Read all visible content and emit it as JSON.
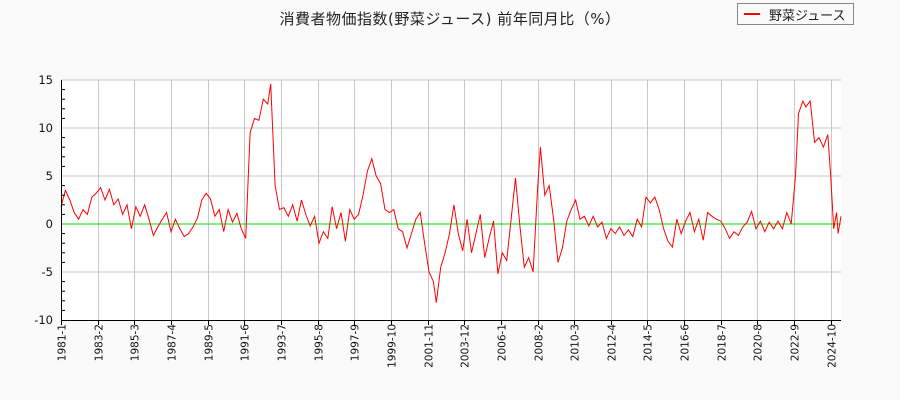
{
  "chart_data": {
    "type": "line",
    "title": "消費者物価指数(野菜ジュース) 前年同月比（%）",
    "xlabel": "",
    "ylabel": "",
    "ylim": [
      -10,
      15
    ],
    "yticks": [
      15,
      10,
      5,
      0,
      -5,
      -10
    ],
    "xticks": [
      "1981-1",
      "1983-2",
      "1985-3",
      "1987-4",
      "1989-5",
      "1991-6",
      "1993-7",
      "1995-8",
      "1997-9",
      "1999-10",
      "2001-11",
      "2003-12",
      "2006-1",
      "2008-2",
      "2010-3",
      "2012-4",
      "2014-5",
      "2016-6",
      "2018-7",
      "2020-8",
      "2022-9",
      "2024-10"
    ],
    "grid": true,
    "legend_position": "top-right",
    "reference_line": {
      "y": 0,
      "color": "#00dd00"
    },
    "series": [
      {
        "name": "野菜ジュース",
        "color": "#ff0000",
        "points": [
          [
            "1981-1",
            1.8
          ],
          [
            "1981-4",
            3.5
          ],
          [
            "1981-7",
            2.5
          ],
          [
            "1981-10",
            1.2
          ],
          [
            "1982-1",
            0.5
          ],
          [
            "1982-4",
            1.5
          ],
          [
            "1982-7",
            1.0
          ],
          [
            "1982-10",
            2.8
          ],
          [
            "1983-1",
            3.2
          ],
          [
            "1983-4",
            3.8
          ],
          [
            "1983-7",
            2.5
          ],
          [
            "1983-10",
            3.6
          ],
          [
            "1984-1",
            2.0
          ],
          [
            "1984-4",
            2.6
          ],
          [
            "1984-7",
            1.0
          ],
          [
            "1984-10",
            2.0
          ],
          [
            "1985-1",
            -0.5
          ],
          [
            "1985-4",
            1.8
          ],
          [
            "1985-7",
            0.8
          ],
          [
            "1985-10",
            2.0
          ],
          [
            "1986-1",
            0.5
          ],
          [
            "1986-4",
            -1.2
          ],
          [
            "1986-7",
            -0.3
          ],
          [
            "1986-10",
            0.5
          ],
          [
            "1987-1",
            1.2
          ],
          [
            "1987-4",
            -0.8
          ],
          [
            "1987-7",
            0.5
          ],
          [
            "1987-10",
            -0.5
          ],
          [
            "1988-1",
            -1.3
          ],
          [
            "1988-4",
            -1.0
          ],
          [
            "1988-7",
            -0.3
          ],
          [
            "1988-10",
            0.6
          ],
          [
            "1989-1",
            2.5
          ],
          [
            "1989-4",
            3.2
          ],
          [
            "1989-7",
            2.6
          ],
          [
            "1989-10",
            0.8
          ],
          [
            "1990-1",
            1.5
          ],
          [
            "1990-4",
            -0.8
          ],
          [
            "1990-7",
            1.5
          ],
          [
            "1990-10",
            0.2
          ],
          [
            "1991-1",
            1.1
          ],
          [
            "1991-4",
            -0.5
          ],
          [
            "1991-7",
            -1.5
          ],
          [
            "1991-10",
            9.5
          ],
          [
            "1992-1",
            11.0
          ],
          [
            "1992-4",
            10.8
          ],
          [
            "1992-7",
            13.0
          ],
          [
            "1992-10",
            12.5
          ],
          [
            "1992-12",
            14.6
          ],
          [
            "1993-3",
            4.0
          ],
          [
            "1993-6",
            1.5
          ],
          [
            "1993-9",
            1.7
          ],
          [
            "1993-12",
            0.8
          ],
          [
            "1994-3",
            2.0
          ],
          [
            "1994-6",
            0.3
          ],
          [
            "1994-9",
            2.5
          ],
          [
            "1994-12",
            1.0
          ],
          [
            "1995-3",
            -0.2
          ],
          [
            "1995-6",
            0.8
          ],
          [
            "1995-9",
            -2.0
          ],
          [
            "1995-12",
            -0.8
          ],
          [
            "1996-3",
            -1.5
          ],
          [
            "1996-6",
            1.8
          ],
          [
            "1996-9",
            -0.5
          ],
          [
            "1996-12",
            1.2
          ],
          [
            "1997-3",
            -1.8
          ],
          [
            "1997-6",
            1.5
          ],
          [
            "1997-9",
            0.5
          ],
          [
            "1997-12",
            1.0
          ],
          [
            "1998-3",
            3.0
          ],
          [
            "1998-6",
            5.5
          ],
          [
            "1998-9",
            6.8
          ],
          [
            "1998-12",
            5.0
          ],
          [
            "1999-3",
            4.2
          ],
          [
            "1999-6",
            1.5
          ],
          [
            "1999-9",
            1.2
          ],
          [
            "1999-12",
            1.5
          ],
          [
            "2000-3",
            -0.5
          ],
          [
            "2000-6",
            -0.8
          ],
          [
            "2000-9",
            -2.5
          ],
          [
            "2000-12",
            -1.0
          ],
          [
            "2001-3",
            0.5
          ],
          [
            "2001-6",
            1.2
          ],
          [
            "2001-9",
            -2.0
          ],
          [
            "2001-12",
            -5.0
          ],
          [
            "2002-3",
            -6.0
          ],
          [
            "2002-5",
            -8.2
          ],
          [
            "2002-8",
            -4.5
          ],
          [
            "2002-11",
            -3.0
          ],
          [
            "2003-2",
            -1.0
          ],
          [
            "2003-5",
            2.0
          ],
          [
            "2003-8",
            -1.0
          ],
          [
            "2003-11",
            -2.8
          ],
          [
            "2004-2",
            0.5
          ],
          [
            "2004-5",
            -3.0
          ],
          [
            "2004-8",
            -1.0
          ],
          [
            "2004-11",
            1.0
          ],
          [
            "2005-2",
            -3.5
          ],
          [
            "2005-5",
            -1.5
          ],
          [
            "2005-8",
            0.3
          ],
          [
            "2005-11",
            -5.2
          ],
          [
            "2006-2",
            -3.0
          ],
          [
            "2006-5",
            -3.8
          ],
          [
            "2006-8",
            0.5
          ],
          [
            "2006-11",
            4.8
          ],
          [
            "2007-2",
            -0.2
          ],
          [
            "2007-5",
            -4.5
          ],
          [
            "2007-8",
            -3.5
          ],
          [
            "2007-11",
            -5.0
          ],
          [
            "2008-2",
            3.5
          ],
          [
            "2008-4",
            8.0
          ],
          [
            "2008-7",
            3.0
          ],
          [
            "2008-10",
            4.0
          ],
          [
            "2009-1",
            0.5
          ],
          [
            "2009-4",
            -4.0
          ],
          [
            "2009-7",
            -2.5
          ],
          [
            "2009-10",
            0.3
          ],
          [
            "2010-1",
            1.5
          ],
          [
            "2010-4",
            2.5
          ],
          [
            "2010-7",
            0.5
          ],
          [
            "2010-10",
            0.8
          ],
          [
            "2011-1",
            -0.2
          ],
          [
            "2011-4",
            0.8
          ],
          [
            "2011-7",
            -0.3
          ],
          [
            "2011-10",
            0.2
          ],
          [
            "2012-1",
            -1.5
          ],
          [
            "2012-4",
            -0.5
          ],
          [
            "2012-7",
            -1.0
          ],
          [
            "2012-10",
            -0.3
          ],
          [
            "2013-1",
            -1.2
          ],
          [
            "2013-4",
            -0.6
          ],
          [
            "2013-7",
            -1.3
          ],
          [
            "2013-10",
            0.5
          ],
          [
            "2014-1",
            -0.3
          ],
          [
            "2014-4",
            2.8
          ],
          [
            "2014-7",
            2.2
          ],
          [
            "2014-10",
            2.8
          ],
          [
            "2015-1",
            1.5
          ],
          [
            "2015-4",
            -0.5
          ],
          [
            "2015-7",
            -1.8
          ],
          [
            "2015-10",
            -2.4
          ],
          [
            "2016-1",
            0.5
          ],
          [
            "2016-4",
            -1.0
          ],
          [
            "2016-7",
            0.3
          ],
          [
            "2016-10",
            1.2
          ],
          [
            "2017-1",
            -0.8
          ],
          [
            "2017-4",
            0.5
          ],
          [
            "2017-7",
            -1.7
          ],
          [
            "2017-10",
            1.2
          ],
          [
            "2018-1",
            0.8
          ],
          [
            "2018-4",
            0.5
          ],
          [
            "2018-7",
            0.3
          ],
          [
            "2018-10",
            -0.5
          ],
          [
            "2019-1",
            -1.5
          ],
          [
            "2019-4",
            -0.8
          ],
          [
            "2019-7",
            -1.2
          ],
          [
            "2019-10",
            -0.3
          ],
          [
            "2020-1",
            0.2
          ],
          [
            "2020-4",
            1.3
          ],
          [
            "2020-7",
            -0.5
          ],
          [
            "2020-10",
            0.3
          ],
          [
            "2021-1",
            -0.8
          ],
          [
            "2021-4",
            0.2
          ],
          [
            "2021-7",
            -0.5
          ],
          [
            "2021-10",
            0.3
          ],
          [
            "2022-1",
            -0.5
          ],
          [
            "2022-4",
            1.2
          ],
          [
            "2022-7",
            0.0
          ],
          [
            "2022-10",
            5.0
          ],
          [
            "2022-12",
            11.5
          ],
          [
            "2023-3",
            12.8
          ],
          [
            "2023-5",
            12.2
          ],
          [
            "2023-8",
            12.8
          ],
          [
            "2023-11",
            8.5
          ],
          [
            "2024-2",
            9.0
          ],
          [
            "2024-5",
            8.0
          ],
          [
            "2024-8",
            9.3
          ],
          [
            "2024-10",
            5.0
          ],
          [
            "2024-12",
            -0.5
          ],
          [
            "2025-2",
            1.2
          ],
          [
            "2025-3",
            -1.0
          ],
          [
            "2025-5",
            0.8
          ]
        ]
      }
    ]
  },
  "legend": {
    "items": [
      {
        "label": "野菜ジュース",
        "color": "#ff0000"
      }
    ]
  }
}
